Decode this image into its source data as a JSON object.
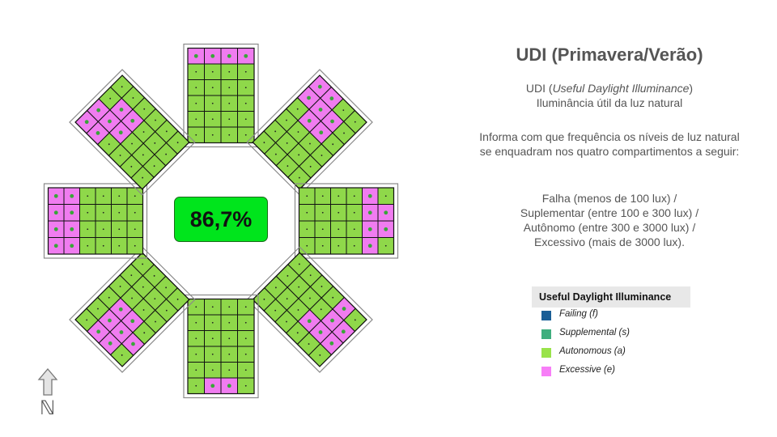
{
  "badge": {
    "percent": "86,7%"
  },
  "north": {
    "label": "ℕ"
  },
  "info": {
    "title": "UDI (Primavera/Verão)",
    "definition_prefix": "UDI (",
    "definition_term": "Useful Daylight Illuminance",
    "definition_suffix": ")",
    "definition_pt": "Iluminância útil da luz natural",
    "description": "Informa com que frequência os níveis de luz natural se enquadram nos quatro compartimentos a seguir:",
    "categories": [
      "Falha (menos de 100 lux) /",
      "Suplementar (entre 100 e 300 lux) /",
      "Autônomo (entre 300 e 3000 lux) /",
      "Excessivo (mais de 3000 lux)."
    ]
  },
  "legend": {
    "title": "Useful Daylight Illuminance",
    "items": [
      {
        "label": "Failing (f)",
        "color": "#1a5e96"
      },
      {
        "label": "Supplemental (s)",
        "color": "#3fae7e"
      },
      {
        "label": "Autonomous (a)",
        "color": "#99e34a"
      },
      {
        "label": "Excessive (e)",
        "color": "#f77ef7"
      }
    ]
  },
  "grid_colors": {
    "autonomous": "#8fd84a",
    "excessive": "#f07cf0"
  },
  "rooms": [
    {
      "name": "N",
      "rows": 6,
      "cols": 4,
      "excessive": [
        [
          0,
          0
        ],
        [
          0,
          1
        ],
        [
          0,
          2
        ],
        [
          0,
          3
        ]
      ]
    },
    {
      "name": "NE",
      "rows": 6,
      "cols": 4,
      "excessive": [
        [
          0,
          0
        ],
        [
          0,
          1
        ],
        [
          1,
          0
        ],
        [
          1,
          1
        ],
        [
          1,
          2
        ],
        [
          2,
          1
        ],
        [
          2,
          2
        ]
      ]
    },
    {
      "name": "E",
      "rows": 6,
      "cols": 4,
      "excessive": [
        [
          0,
          1
        ],
        [
          0,
          2
        ],
        [
          1,
          0
        ],
        [
          1,
          1
        ],
        [
          1,
          2
        ],
        [
          1,
          3
        ]
      ]
    },
    {
      "name": "SE",
      "rows": 6,
      "cols": 4,
      "excessive": [
        [
          0,
          1
        ],
        [
          0,
          2
        ],
        [
          1,
          0
        ],
        [
          1,
          1
        ],
        [
          1,
          2
        ],
        [
          2,
          2
        ]
      ]
    },
    {
      "name": "S",
      "rows": 6,
      "cols": 4,
      "excessive": [
        [
          0,
          1
        ],
        [
          0,
          2
        ]
      ]
    },
    {
      "name": "SW",
      "rows": 6,
      "cols": 4,
      "excessive": [
        [
          0,
          1
        ],
        [
          0,
          2
        ],
        [
          1,
          0
        ],
        [
          1,
          1
        ],
        [
          1,
          2
        ],
        [
          2,
          1
        ],
        [
          2,
          2
        ]
      ]
    },
    {
      "name": "W",
      "rows": 6,
      "cols": 4,
      "excessive": [
        [
          0,
          0
        ],
        [
          0,
          1
        ],
        [
          0,
          2
        ],
        [
          0,
          3
        ],
        [
          1,
          0
        ],
        [
          1,
          1
        ],
        [
          1,
          2
        ],
        [
          1,
          3
        ]
      ]
    },
    {
      "name": "NW",
      "rows": 6,
      "cols": 4,
      "excessive": [
        [
          0,
          0
        ],
        [
          0,
          1
        ],
        [
          1,
          0
        ],
        [
          1,
          1
        ],
        [
          1,
          2
        ],
        [
          2,
          1
        ],
        [
          2,
          2
        ]
      ]
    }
  ]
}
